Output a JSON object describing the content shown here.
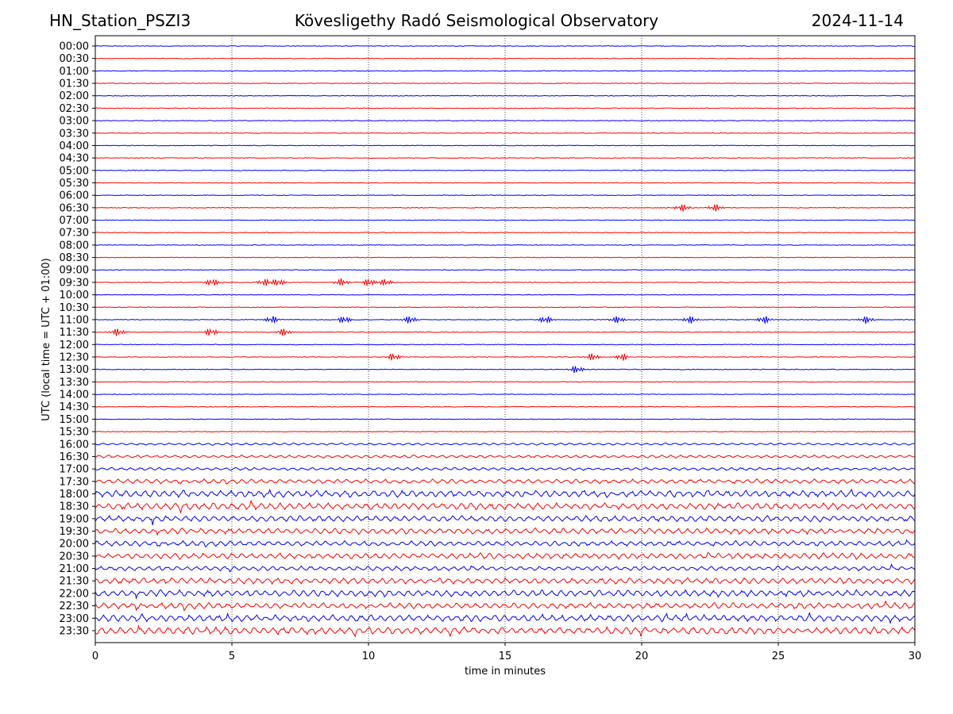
{
  "header": {
    "station": "HN_Station_PSZI3",
    "observatory": "Kövesligethy Radó Seismological Observatory",
    "date": "2024-11-14"
  },
  "chart_data": {
    "type": "line",
    "title": "Kövesligethy Radó Seismological Observatory",
    "xlabel": "time in minutes",
    "ylabel": "UTC (local time = UTC + 01:00)",
    "xlim": [
      0,
      30
    ],
    "xticks": [
      0,
      5,
      10,
      15,
      20,
      25,
      30
    ],
    "grid": "vertical dotted lines at 5-minute intervals",
    "row_labels": [
      "00:00",
      "00:30",
      "01:00",
      "01:30",
      "02:00",
      "02:30",
      "03:00",
      "03:30",
      "04:00",
      "04:30",
      "05:00",
      "05:30",
      "06:00",
      "06:30",
      "07:00",
      "07:30",
      "08:00",
      "08:30",
      "09:00",
      "09:30",
      "10:00",
      "10:30",
      "11:00",
      "11:30",
      "12:00",
      "12:30",
      "13:00",
      "13:30",
      "14:00",
      "14:30",
      "15:00",
      "15:30",
      "16:00",
      "16:30",
      "17:00",
      "17:30",
      "18:00",
      "18:30",
      "19:00",
      "19:30",
      "20:00",
      "20:30",
      "21:00",
      "21:30",
      "22:00",
      "22:30",
      "23:00",
      "23:30"
    ],
    "trace_colors": [
      "#0000ff",
      "#ff0000"
    ],
    "events": [
      {
        "row": "06:30",
        "minutes": [
          21.5,
          22.7
        ]
      },
      {
        "row": "09:30",
        "minutes": [
          4.3,
          6.2,
          6.7,
          9.0,
          10.0,
          10.6
        ]
      },
      {
        "row": "11:00",
        "minutes": [
          6.5,
          9.1,
          11.5,
          16.5,
          19.1,
          21.8,
          24.5,
          28.2
        ]
      },
      {
        "row": "11:30",
        "minutes": [
          0.8,
          4.2,
          6.9
        ]
      },
      {
        "row": "12:30",
        "minutes": [
          10.9,
          18.2,
          19.3
        ]
      },
      {
        "row": "13:00",
        "minutes": [
          17.6
        ]
      }
    ],
    "noise_levels": {
      "16:00": 0.15,
      "16:30": 0.2,
      "17:00": 0.2,
      "17:30": 0.3,
      "18:00": 0.45,
      "18:30": 0.45,
      "19:00": 0.4,
      "19:30": 0.4,
      "20:00": 0.35,
      "20:30": 0.4,
      "21:00": 0.3,
      "21:30": 0.4,
      "22:00": 0.45,
      "22:30": 0.4,
      "23:00": 0.45,
      "23:30": 0.5
    }
  }
}
